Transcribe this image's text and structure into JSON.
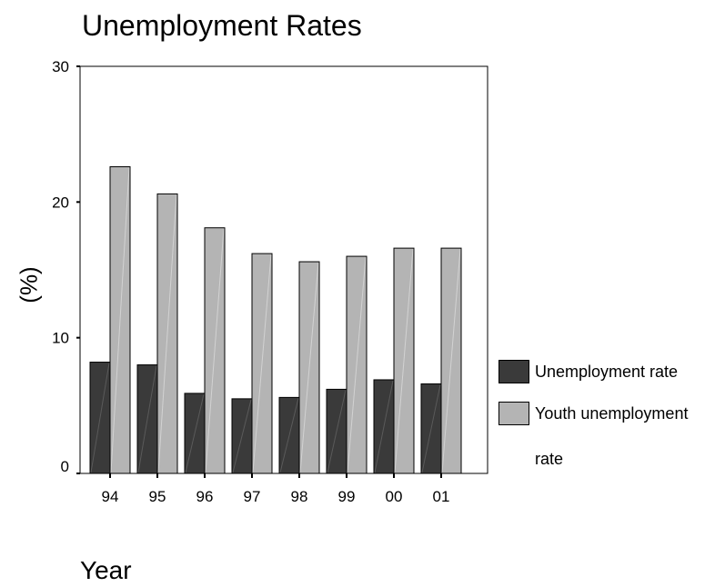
{
  "chart_data": {
    "type": "bar",
    "title": "Unemployment Rates",
    "xlabel": "Year",
    "ylabel": "(%)",
    "categories": [
      "94",
      "95",
      "96",
      "97",
      "98",
      "99",
      "00",
      "01"
    ],
    "series": [
      {
        "name": "Unemployment rate",
        "color": "#3a3a3a",
        "values": [
          8.2,
          8.0,
          5.9,
          5.5,
          5.6,
          6.2,
          6.9,
          6.6
        ]
      },
      {
        "name": "Youth unemployment rate",
        "color": "#b4b4b4",
        "values": [
          22.6,
          20.6,
          18.1,
          16.2,
          15.6,
          16.0,
          16.6,
          16.6
        ]
      }
    ],
    "ylim": [
      0,
      30
    ],
    "yticks": [
      "0",
      "10",
      "20",
      "30"
    ],
    "grid": false,
    "legend_position": "right"
  }
}
